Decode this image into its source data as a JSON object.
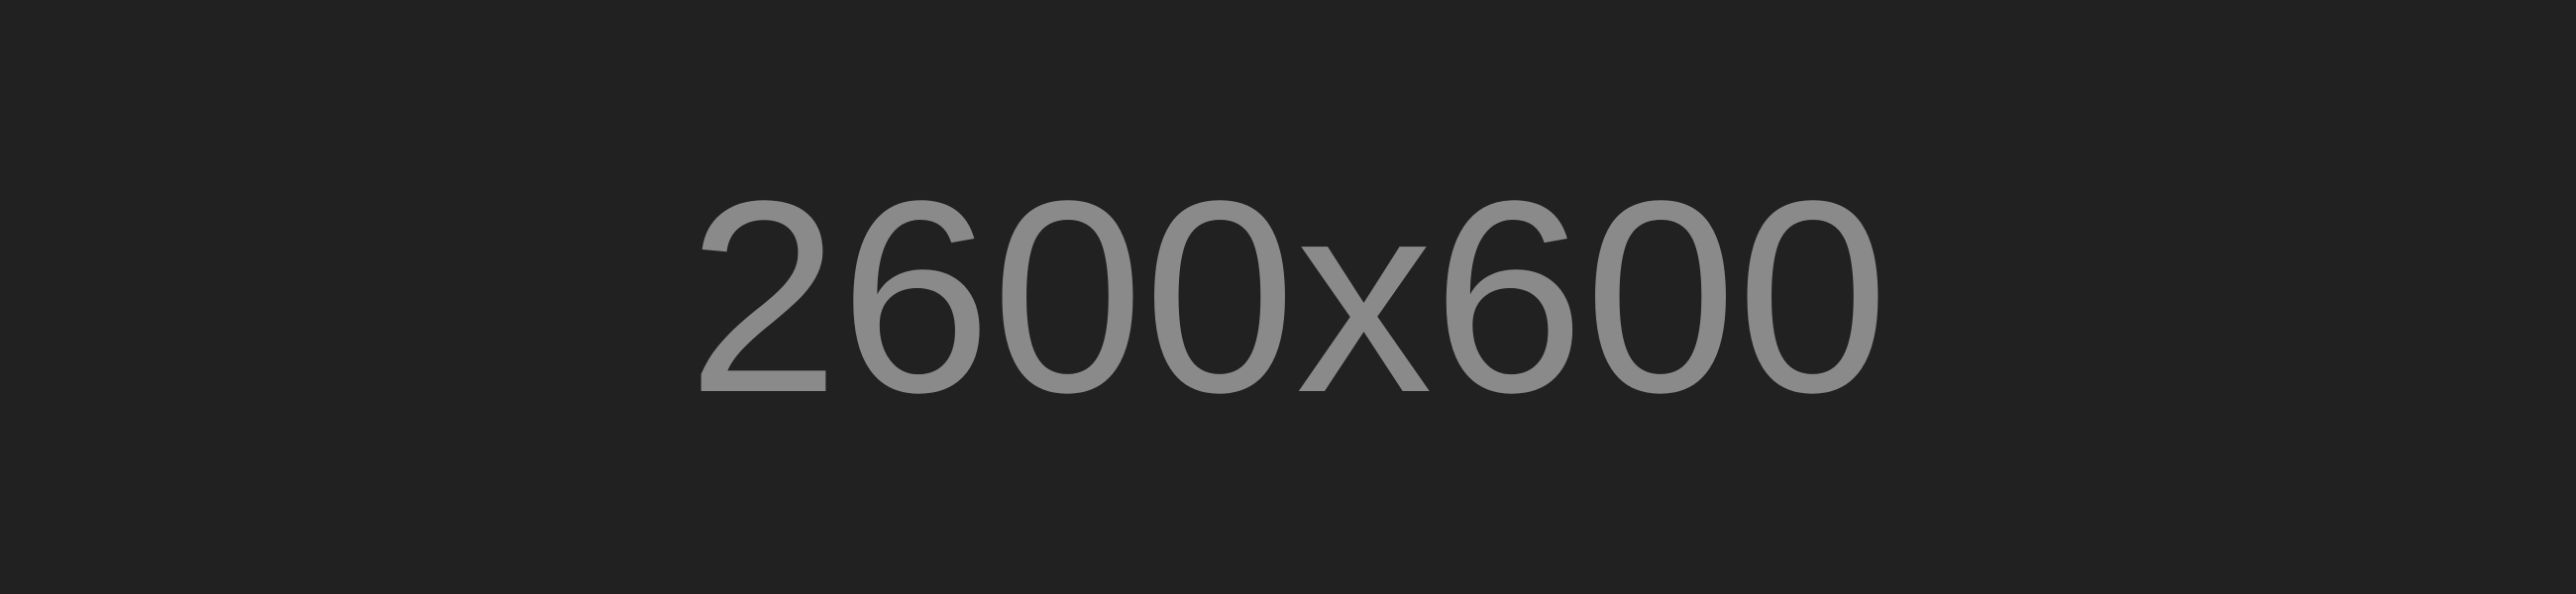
{
  "placeholder": {
    "label": "2600x600",
    "background_color": "#212121",
    "text_color": "#8a8a8a"
  }
}
